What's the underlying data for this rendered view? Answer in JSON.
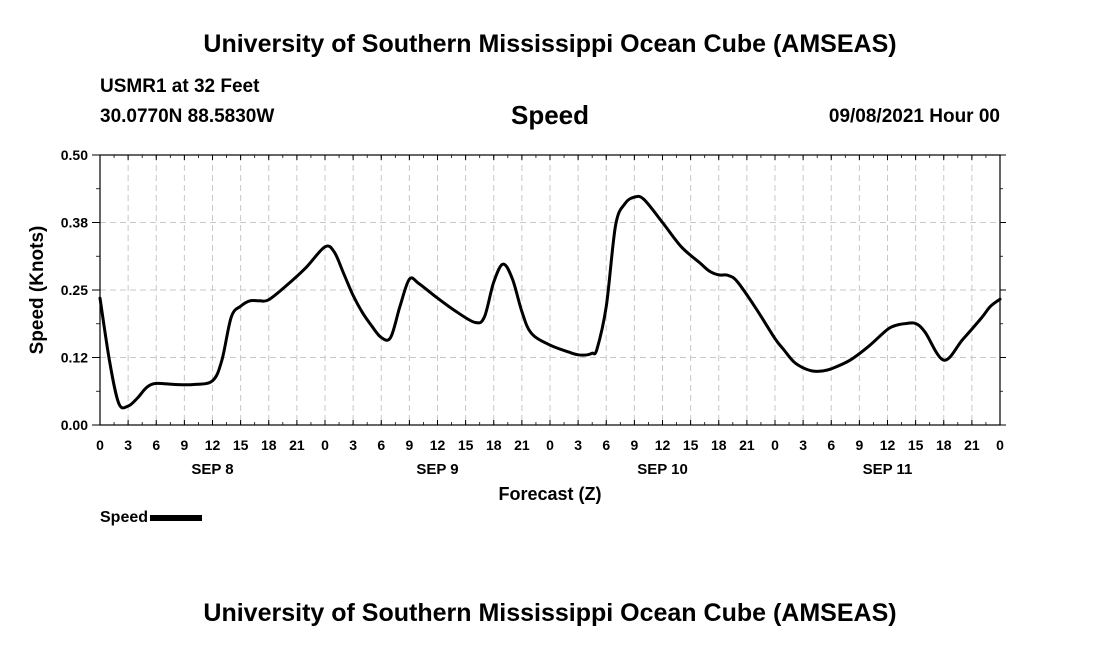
{
  "header": {
    "title": "University of Southern Mississippi Ocean Cube (AMSEAS)",
    "station": "USMR1 at 32 Feet",
    "coords": "30.0770N  88.5830W",
    "parameter": "Speed",
    "datetime": "09/08/2021 Hour 00"
  },
  "footer": {
    "title": "University of Southern Mississippi Ocean Cube (AMSEAS)"
  },
  "chart_data": {
    "type": "line",
    "title": "Speed",
    "xlabel": "Forecast (Z)",
    "ylabel": "Speed (Knots)",
    "xlim": [
      0,
      96
    ],
    "ylim": [
      0.0,
      0.5
    ],
    "grid": true,
    "legend_position": "bottom-left",
    "x_tick_labels": [
      "0",
      "3",
      "6",
      "9",
      "12",
      "15",
      "18",
      "21",
      "0",
      "3",
      "6",
      "9",
      "12",
      "15",
      "18",
      "21",
      "0",
      "3",
      "6",
      "9",
      "12",
      "15",
      "18",
      "21",
      "0",
      "3",
      "6",
      "9",
      "12",
      "15",
      "18",
      "21",
      "0"
    ],
    "day_labels": [
      {
        "label": "SEP 8",
        "x": 12
      },
      {
        "label": "SEP 9",
        "x": 36
      },
      {
        "label": "SEP 10",
        "x": 60
      },
      {
        "label": "SEP 11",
        "x": 84
      }
    ],
    "y_ticks": [
      {
        "value": 0.0,
        "label": "0.00"
      },
      {
        "value": 0.125,
        "label": "0.12"
      },
      {
        "value": 0.25,
        "label": "0.25"
      },
      {
        "value": 0.375,
        "label": "0.38"
      },
      {
        "value": 0.5,
        "label": "0.50"
      }
    ],
    "series": [
      {
        "name": "Speed",
        "color": "#000000",
        "x": [
          0,
          1,
          2,
          3,
          4,
          5,
          6,
          8,
          10,
          12,
          13,
          14,
          15,
          16,
          17,
          18,
          20,
          22,
          24,
          25,
          26,
          27,
          28,
          29,
          30,
          31,
          32,
          33,
          34,
          36,
          38,
          40,
          41,
          42,
          43,
          44,
          45,
          46,
          48,
          50,
          51,
          52,
          52.5,
          53,
          54,
          55,
          56,
          57,
          58,
          60,
          62,
          64,
          65,
          66,
          67,
          68,
          70,
          72,
          73,
          74,
          75,
          76,
          77,
          78,
          80,
          82,
          84,
          85,
          86,
          87,
          88,
          90,
          92,
          94,
          95,
          96
        ],
        "values": [
          0.235,
          0.12,
          0.04,
          0.035,
          0.05,
          0.07,
          0.077,
          0.075,
          0.075,
          0.082,
          0.12,
          0.2,
          0.22,
          0.23,
          0.23,
          0.232,
          0.26,
          0.292,
          0.33,
          0.32,
          0.28,
          0.24,
          0.208,
          0.183,
          0.162,
          0.162,
          0.22,
          0.27,
          0.262,
          0.235,
          0.21,
          0.19,
          0.2,
          0.265,
          0.298,
          0.27,
          0.21,
          0.17,
          0.148,
          0.135,
          0.13,
          0.13,
          0.133,
          0.14,
          0.22,
          0.37,
          0.41,
          0.422,
          0.418,
          0.375,
          0.33,
          0.3,
          0.285,
          0.278,
          0.277,
          0.265,
          0.215,
          0.16,
          0.138,
          0.117,
          0.106,
          0.1,
          0.1,
          0.104,
          0.12,
          0.146,
          0.177,
          0.185,
          0.188,
          0.188,
          0.172,
          0.12,
          0.158,
          0.198,
          0.22,
          0.233
        ]
      }
    ]
  },
  "legend": {
    "label": "Speed"
  }
}
